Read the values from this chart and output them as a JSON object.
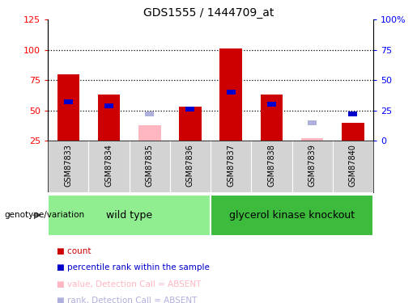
{
  "title": "GDS1555 / 1444709_at",
  "samples": [
    "GSM87833",
    "GSM87834",
    "GSM87835",
    "GSM87836",
    "GSM87837",
    "GSM87838",
    "GSM87839",
    "GSM87840"
  ],
  "red_bars": [
    80,
    63,
    null,
    53,
    101,
    63,
    null,
    40
  ],
  "blue_bars": [
    57,
    54,
    null,
    51,
    65,
    55,
    null,
    null
  ],
  "pink_bars": [
    null,
    null,
    38,
    null,
    null,
    null,
    27,
    null
  ],
  "lavender_bars": [
    null,
    null,
    47,
    null,
    null,
    null,
    40,
    null
  ],
  "blue_absent_bars": [
    null,
    null,
    null,
    null,
    null,
    null,
    null,
    47
  ],
  "ylim_left": [
    25,
    125
  ],
  "ylim_right": [
    0,
    100
  ],
  "yticks_left": [
    25,
    50,
    75,
    100,
    125
  ],
  "yticks_right": [
    0,
    25,
    50,
    75,
    100
  ],
  "ytick_labels_right": [
    "0",
    "25",
    "50",
    "75",
    "100%"
  ],
  "grid_lines": [
    50,
    75,
    100
  ],
  "wt_color": "#90ee90",
  "gk_color": "#3dbb3d",
  "red_color": "#cc0000",
  "blue_color": "#0000cc",
  "pink_color": "#ffb6c1",
  "lavender_color": "#b0b0dd",
  "legend_items": [
    {
      "color": "#cc0000",
      "label": "count"
    },
    {
      "color": "#0000cc",
      "label": "percentile rank within the sample"
    },
    {
      "color": "#ffb6c1",
      "label": "value, Detection Call = ABSENT"
    },
    {
      "color": "#b0b0dd",
      "label": "rank, Detection Call = ABSENT"
    }
  ]
}
